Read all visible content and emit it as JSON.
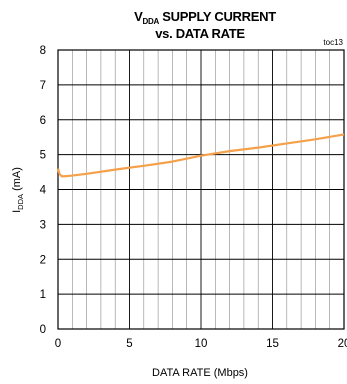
{
  "chart_data": {
    "type": "line",
    "title_line1_main": "V",
    "title_line1_sub": "DDA",
    "title_line1_rest": " SUPPLY CURRENT",
    "title_line2": "vs. DATA RATE",
    "note": "toc13",
    "xlabel": "DATA RATE (Mbps)",
    "ylabel_main": "I",
    "ylabel_sub": "DDA",
    "ylabel_rest": " (mA)",
    "xlim": [
      0,
      20
    ],
    "ylim": [
      0,
      8
    ],
    "x_ticks": [
      "0",
      "5",
      "10",
      "15",
      "20"
    ],
    "y_ticks": [
      "0",
      "1",
      "2",
      "3",
      "4",
      "5",
      "6",
      "7",
      "8"
    ],
    "grid": true,
    "line_color": "#f5a04a",
    "series": [
      {
        "x": [
          0,
          0.1,
          0.25,
          0.5,
          1,
          2,
          4,
          6,
          8,
          10,
          12,
          14,
          16,
          18,
          20
        ],
        "y": [
          4.6,
          4.45,
          4.38,
          4.38,
          4.4,
          4.45,
          4.57,
          4.68,
          4.8,
          4.97,
          5.1,
          5.2,
          5.32,
          5.44,
          5.58
        ]
      }
    ]
  }
}
